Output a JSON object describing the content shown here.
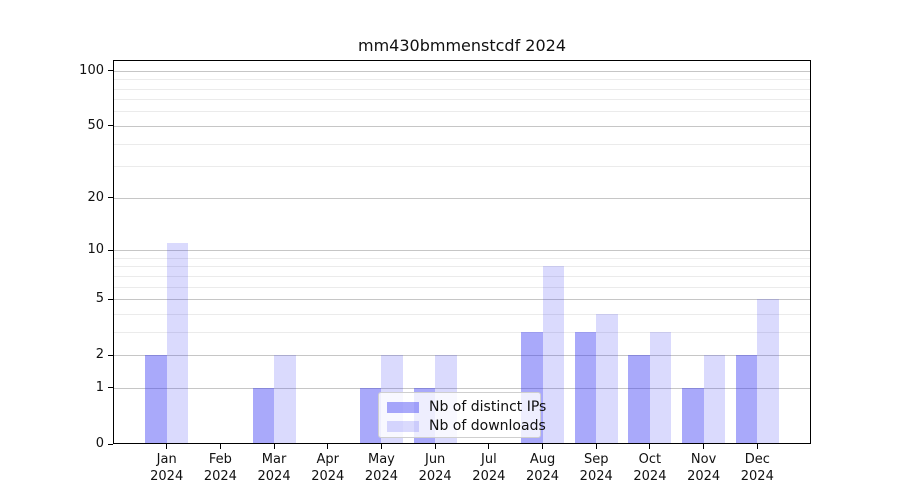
{
  "title": "mm430bmmenstcdf 2024",
  "chart_data": {
    "type": "bar",
    "title": "mm430bmmenstcdf 2024",
    "categories": [
      "Jan",
      "Feb",
      "Mar",
      "Apr",
      "May",
      "Jun",
      "Jul",
      "Aug",
      "Sep",
      "Oct",
      "Nov",
      "Dec"
    ],
    "year": "2024",
    "series": [
      {
        "name": "Nb of distinct IPs",
        "slug": "distinct-ips",
        "color": "rgba(50,50,243,0.42)",
        "values": [
          2,
          0,
          1,
          0,
          1,
          1,
          0,
          3,
          3,
          2,
          1,
          2
        ]
      },
      {
        "name": "Nb of downloads",
        "slug": "downloads",
        "color": "rgba(50,50,243,0.18)",
        "values": [
          11,
          0,
          2,
          0,
          2,
          2,
          0,
          8,
          4,
          3,
          2,
          5
        ]
      }
    ],
    "xlabel": "",
    "ylabel": "",
    "yscale": "log1p",
    "ylim": [
      0,
      114.3
    ],
    "y_major_ticks": [
      0,
      1,
      2,
      5,
      10,
      20,
      50,
      100
    ],
    "y_minor_gridlines": [
      3,
      4,
      6,
      7,
      8,
      9,
      30,
      40,
      60,
      70,
      80,
      90
    ],
    "grid": true,
    "legend_position": "lower-center"
  },
  "colors": {
    "bar_distinct_ips": "rgba(50,50,243,0.42)",
    "bar_downloads": "rgba(50,50,243,0.18)",
    "grid_major": "#c6c6c6",
    "grid_minor": "#ebebeb",
    "spine": "#000000",
    "background": "#ffffff"
  }
}
